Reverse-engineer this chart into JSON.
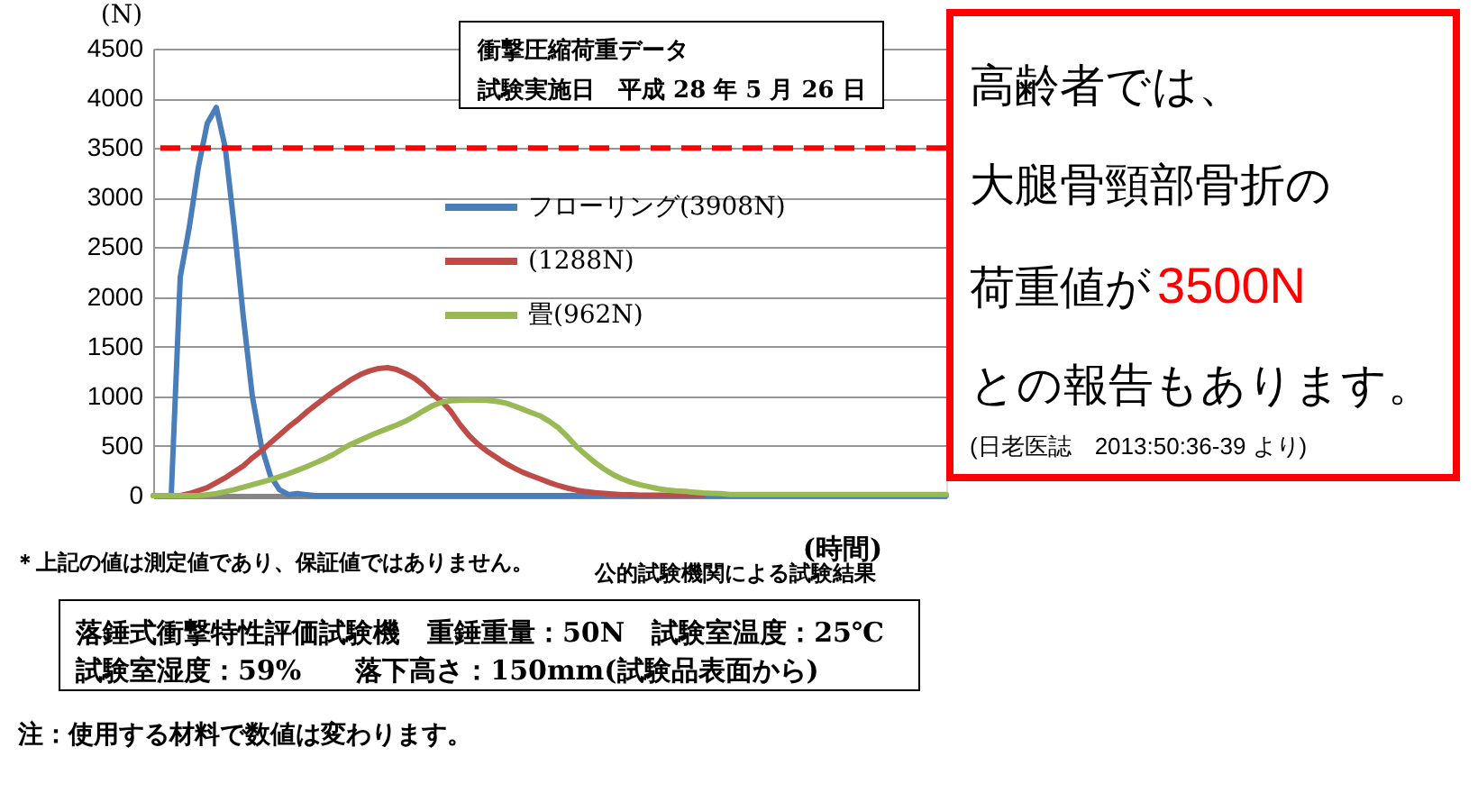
{
  "chart_data": {
    "type": "line",
    "xlabel": "(時間)",
    "ylabel": "(N)",
    "categories": [
      null,
      null,
      null,
      null,
      null,
      null,
      null,
      null,
      null,
      null,
      null,
      null,
      null,
      null,
      null,
      null,
      null,
      null,
      null,
      null,
      null,
      null,
      null,
      null,
      null,
      null,
      null,
      null,
      null,
      null,
      null,
      null,
      null,
      null,
      null,
      null,
      null,
      null,
      null,
      null,
      null,
      null,
      null,
      null,
      null,
      null,
      null,
      null,
      null,
      null,
      null,
      null,
      null,
      null,
      null,
      null,
      null,
      null,
      null,
      null,
      null,
      null,
      null,
      null,
      null,
      null,
      null,
      null,
      null,
      null,
      null,
      null,
      null,
      null,
      null,
      null,
      null,
      null,
      null,
      null,
      null,
      null,
      null,
      null,
      null,
      null,
      null,
      null,
      null
    ],
    "series": [
      {
        "name": "フローリング(3908N)",
        "color": "#4a7ebb",
        "values": [
          0,
          0,
          0,
          2200,
          2700,
          3300,
          3750,
          3908,
          3500,
          2700,
          1800,
          1000,
          500,
          200,
          60,
          10,
          20,
          10,
          0,
          0,
          0,
          0,
          0,
          0,
          0,
          0,
          0,
          0,
          0,
          0,
          0,
          0,
          0,
          0,
          0,
          0,
          0,
          0,
          0,
          0,
          0,
          0,
          0,
          0,
          0,
          0,
          0,
          0,
          0,
          0,
          0,
          0,
          0,
          0,
          0,
          0,
          0,
          0,
          0,
          0,
          0,
          0,
          0,
          0,
          0,
          0,
          0,
          0,
          0,
          0,
          0,
          0,
          0,
          0,
          0,
          0,
          0,
          0,
          0,
          0,
          0,
          0,
          0,
          0,
          0,
          0,
          0,
          0,
          0
        ]
      },
      {
        "name": "(1288N)",
        "color": "#be4b48",
        "values": [
          null,
          null,
          null,
          0,
          20,
          50,
          80,
          130,
          180,
          240,
          300,
          380,
          450,
          530,
          610,
          690,
          760,
          840,
          910,
          980,
          1050,
          1110,
          1170,
          1220,
          1255,
          1280,
          1288,
          1270,
          1230,
          1180,
          1110,
          1020,
          950,
          850,
          720,
          610,
          520,
          450,
          390,
          330,
          280,
          235,
          200,
          165,
          130,
          100,
          75,
          55,
          40,
          30,
          22,
          15,
          10,
          8,
          5,
          5,
          5,
          5,
          5,
          5,
          5,
          5,
          null,
          null,
          null,
          null,
          null,
          null,
          null,
          null,
          null,
          null,
          null,
          null,
          null,
          null,
          null,
          null,
          null,
          null,
          null,
          null,
          null,
          null,
          null,
          null,
          null,
          null,
          null
        ]
      },
      {
        "name": "畳(962N)",
        "color": "#98b954",
        "values": [
          0,
          0,
          0,
          0,
          0,
          0,
          10,
          20,
          40,
          60,
          85,
          110,
          135,
          160,
          190,
          220,
          255,
          290,
          330,
          370,
          415,
          470,
          520,
          560,
          600,
          640,
          675,
          710,
          750,
          800,
          855,
          905,
          940,
          955,
          960,
          962,
          962,
          960,
          950,
          935,
          905,
          870,
          835,
          800,
          745,
          680,
          590,
          490,
          410,
          335,
          270,
          213,
          170,
          135,
          110,
          90,
          70,
          57,
          48,
          43,
          35,
          28,
          23,
          20,
          12,
          12,
          12,
          12,
          12,
          12,
          12,
          12,
          12,
          12,
          12,
          12,
          12,
          12,
          12,
          12,
          12,
          12,
          12,
          12,
          12,
          12,
          12,
          12,
          12
        ]
      }
    ],
    "ylim": [
      0,
      4500
    ],
    "yticks": [
      0,
      500,
      1000,
      1500,
      2000,
      2500,
      3000,
      3500,
      4000,
      4500
    ],
    "grid": "y",
    "legend": "top",
    "marker": "none",
    "line_style": "solid",
    "ref_lines": [
      {
        "axis": "y",
        "value": 3500,
        "color": "#ff0000",
        "line_style": "dashed"
      }
    ],
    "annotations": [
      "衝撃圧縮荷重データ",
      "試験実施日　平成 28 年 5 月 26 日",
      "高齢者では、",
      "大腿骨頸部骨折の",
      "荷重値が",
      "3500N",
      "との報告もあります。",
      "(日老医誌　2013:50:36-39 より)",
      "＊上記の値は測定値であり、保証値ではありません。",
      "公的試験機関による試験結果",
      "落錘式衝撃特性評価試験機　重錘重量：50N　試験室温度：25℃",
      "試験室湿度：59%　　落下高さ：150mm(試験品表面から)",
      "注：使用する材料で数値は変わります。"
    ]
  }
}
